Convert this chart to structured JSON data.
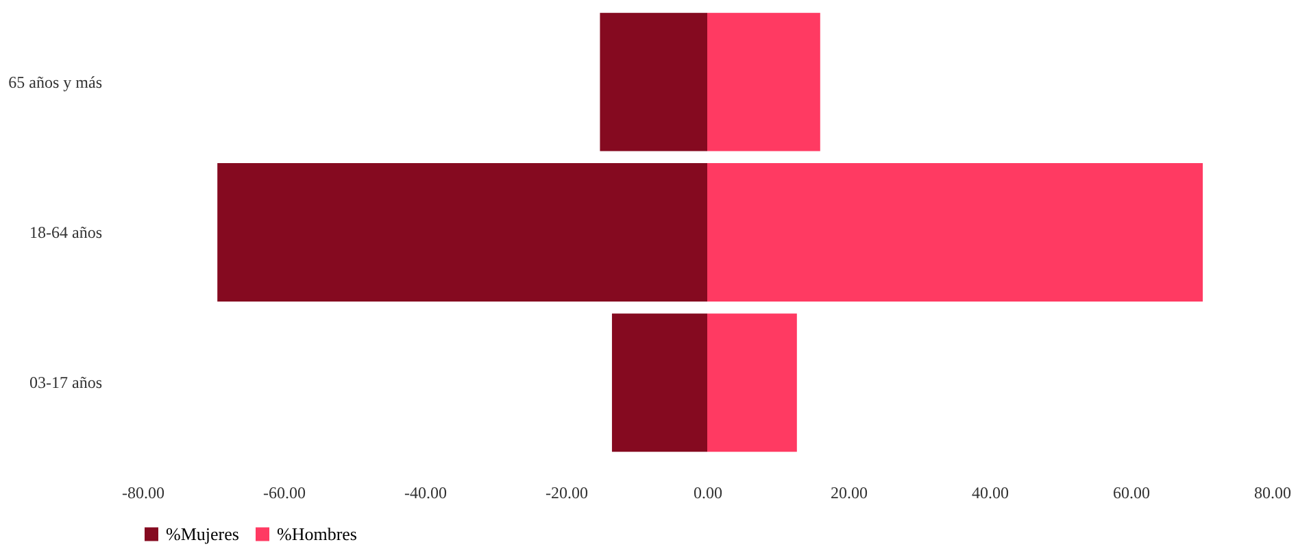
{
  "chart_data": {
    "type": "bar",
    "orientation": "horizontal",
    "categories": [
      "65 años y más",
      "18-64 años",
      "03-17 años"
    ],
    "series": [
      {
        "name": "%Mujeres",
        "color": "#850a20",
        "values": [
          -15.2,
          -69.4,
          -13.5
        ]
      },
      {
        "name": "%Hombres",
        "color": "#ff3a62",
        "values": [
          16.0,
          70.2,
          12.7
        ]
      }
    ],
    "xlim": [
      -80,
      80
    ],
    "xticks": [
      {
        "value": -80,
        "label": "-80.00"
      },
      {
        "value": -60,
        "label": "-60.00"
      },
      {
        "value": -40,
        "label": "-40.00"
      },
      {
        "value": -20,
        "label": "-20.00"
      },
      {
        "value": 0,
        "label": "0.00"
      },
      {
        "value": 20,
        "label": "20.00"
      },
      {
        "value": 40,
        "label": "40.00"
      },
      {
        "value": 60,
        "label": "60.00"
      },
      {
        "value": 80,
        "label": "80.00"
      }
    ],
    "stacked": true,
    "grid": false,
    "legend": "bottom"
  }
}
